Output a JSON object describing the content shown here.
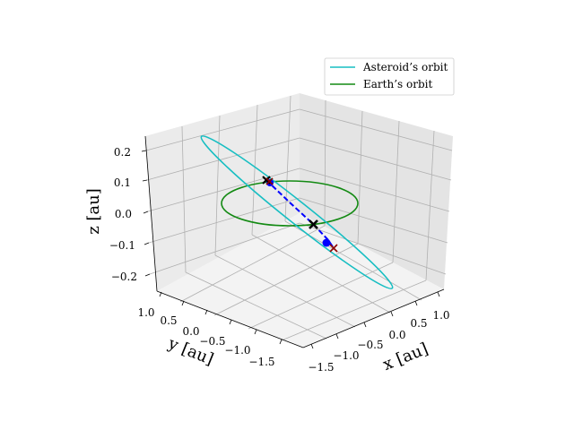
{
  "chart_data": {
    "type": "line3d",
    "xlabel": "x [au]",
    "ylabel": "y [au]",
    "zlabel": "z [au]",
    "xticks": [
      "−1.5",
      "−1.0",
      "−0.5",
      "0.0",
      "0.5",
      "1.0"
    ],
    "yticks": [
      "1.0",
      "0.5",
      "0.0",
      "−0.5",
      "−1.0",
      "−1.5"
    ],
    "zticks": [
      "0.2",
      "0.1",
      "0.0",
      "−0.1",
      "−0.2"
    ],
    "legend": [
      "Asteroid’s orbit",
      "Earth’s orbit"
    ],
    "legend_position": "top-right",
    "grid": true,
    "colors": {
      "asteroid_orbit": "#17bec2",
      "earth_orbit": "#138a13",
      "trajectory": "#0000ff",
      "marker_black": "#000000",
      "marker_red": "#8b0000",
      "marker_blue": "#0000ff"
    }
  }
}
